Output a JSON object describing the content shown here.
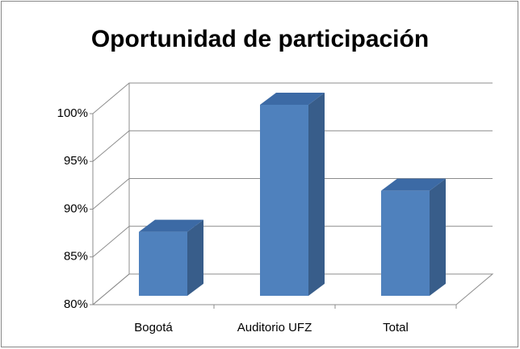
{
  "chart_data": {
    "type": "bar3d",
    "title": "Oportunidad de participación",
    "categories": [
      "Bogotá",
      "Auditorio UFZ",
      "Total"
    ],
    "values": [
      86.7,
      100,
      91
    ],
    "color": "#4f81bd",
    "ylim": [
      80,
      100
    ],
    "yticks": [
      {
        "value": 80,
        "label": "80%"
      },
      {
        "value": 85,
        "label": "85%"
      },
      {
        "value": 90,
        "label": "90%"
      },
      {
        "value": 95,
        "label": "95%"
      },
      {
        "value": 100,
        "label": "100%"
      }
    ],
    "grid": true
  }
}
